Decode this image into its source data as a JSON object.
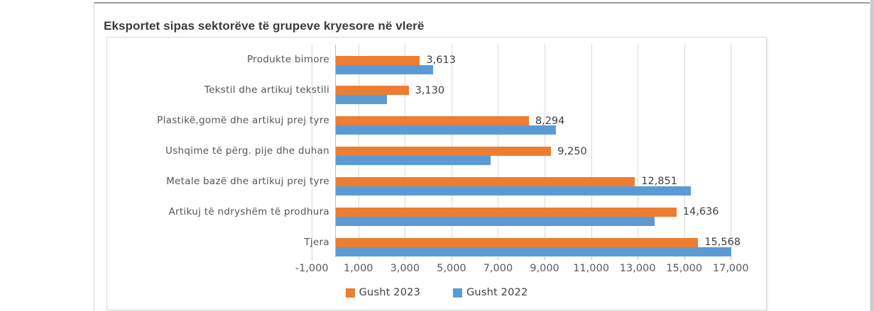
{
  "chart_data": {
    "type": "bar",
    "orientation": "horizontal",
    "title": "Eksportet sipas sektorëve të grupeve kryesore në vlerë",
    "categories": [
      "Produkte bimore",
      "Tekstil dhe artikuj tekstili",
      "Plastikë,gomë dhe artikuj prej tyre",
      "Ushqime të përg. pije dhe duhan",
      "Metale bazë dhe artikuj prej tyre",
      "Artikuj të ndryshëm të prodhura",
      "Tjera"
    ],
    "series": [
      {
        "name": "Gusht 2023",
        "color": "#ED7D31",
        "values": [
          3613,
          3130,
          8294,
          9250,
          12851,
          14636,
          15568
        ],
        "data_labels": [
          "3,613",
          "3,130",
          "8,294",
          "9,250",
          "12,851",
          "14,636",
          "15,568"
        ]
      },
      {
        "name": "Gusht 2022",
        "color": "#5B9BD5",
        "values": [
          4170,
          2190,
          9460,
          6640,
          15260,
          13710,
          16990
        ]
      }
    ],
    "x_axis": {
      "min": -1000,
      "max": 17000,
      "tick_step": 2000,
      "tick_labels": [
        "-1,000",
        "1,000",
        "3,000",
        "5,000",
        "7,000",
        "9,000",
        "11,000",
        "13,000",
        "15,000",
        "17,000"
      ]
    },
    "legend": {
      "position": "bottom",
      "entries": [
        "Gusht 2023",
        "Gusht 2022"
      ]
    },
    "grid": true,
    "colors": {
      "gridline": "#d9d9d9",
      "axis_line": "#bfbfbf",
      "data_label": "#404040",
      "tick_label": "#595959"
    }
  }
}
